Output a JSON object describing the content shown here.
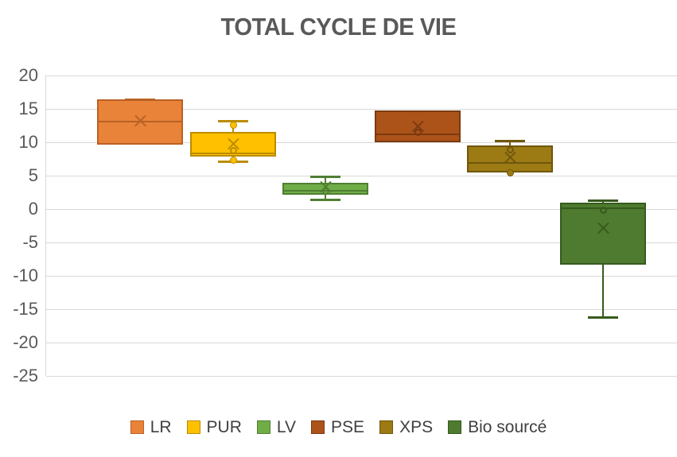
{
  "chart_data": {
    "type": "boxplot",
    "title": "TOTAL CYCLE DE VIE",
    "xlabel": "",
    "ylabel": "",
    "ylim": [
      -25,
      20
    ],
    "yticks": [
      20,
      15,
      10,
      5,
      0,
      -5,
      -10,
      -15,
      -20,
      -25
    ],
    "grid": true,
    "legend_position": "bottom",
    "axis_text_color": "#595959",
    "gridline_color": "#d9d9d9",
    "title_color": "#595959",
    "legend_text_color": "#404040",
    "series": [
      {
        "name": "LR",
        "fill": "#E98339",
        "border": "#B96125",
        "q1": 9.6,
        "median": 13.1,
        "q3": 16.4,
        "mean": 13.1,
        "whisker_low": null,
        "whisker_high": 16.4,
        "outliers": []
      },
      {
        "name": "PUR",
        "fill": "#FFC000",
        "border": "#BC8C00",
        "q1": 7.8,
        "median": 8.3,
        "q3": 11.5,
        "mean": 9.7,
        "whisker_low": 7.1,
        "whisker_high": 13.1,
        "outliers": [
          {
            "value": 12.6,
            "style": "filled"
          },
          {
            "value": 8.7,
            "style": "open"
          },
          {
            "value": 7.3,
            "style": "filled"
          }
        ]
      },
      {
        "name": "LV",
        "fill": "#70AD47",
        "border": "#507E32",
        "q1": 2.2,
        "median": 2.7,
        "q3": 3.9,
        "mean": 3.3,
        "whisker_low": 1.4,
        "whisker_high": 4.8,
        "outliers": [
          {
            "value": 2.7,
            "style": "open"
          }
        ]
      },
      {
        "name": "PSE",
        "fill": "#AC5319",
        "border": "#7B3A11",
        "q1": 10.0,
        "median": 11.2,
        "q3": 14.8,
        "mean": 12.3,
        "whisker_low": null,
        "whisker_high": null,
        "outliers": [
          {
            "value": 11.5,
            "style": "open"
          }
        ]
      },
      {
        "name": "XPS",
        "fill": "#9C7A14",
        "border": "#6F570C",
        "q1": 5.5,
        "median": 6.9,
        "q3": 9.5,
        "mean": 7.7,
        "whisker_low": null,
        "whisker_high": 10.2,
        "outliers": [
          {
            "value": 8.9,
            "style": "open"
          },
          {
            "value": 5.4,
            "style": "filled"
          }
        ]
      },
      {
        "name": "Bio sourcé",
        "fill": "#4E7B2F",
        "border": "#375A1E",
        "q1": -8.3,
        "median": 0.1,
        "q3": 0.9,
        "mean": -2.9,
        "whisker_low": -16.2,
        "whisker_high": 1.2,
        "outliers": [
          {
            "value": -0.2,
            "style": "open"
          }
        ]
      }
    ]
  }
}
